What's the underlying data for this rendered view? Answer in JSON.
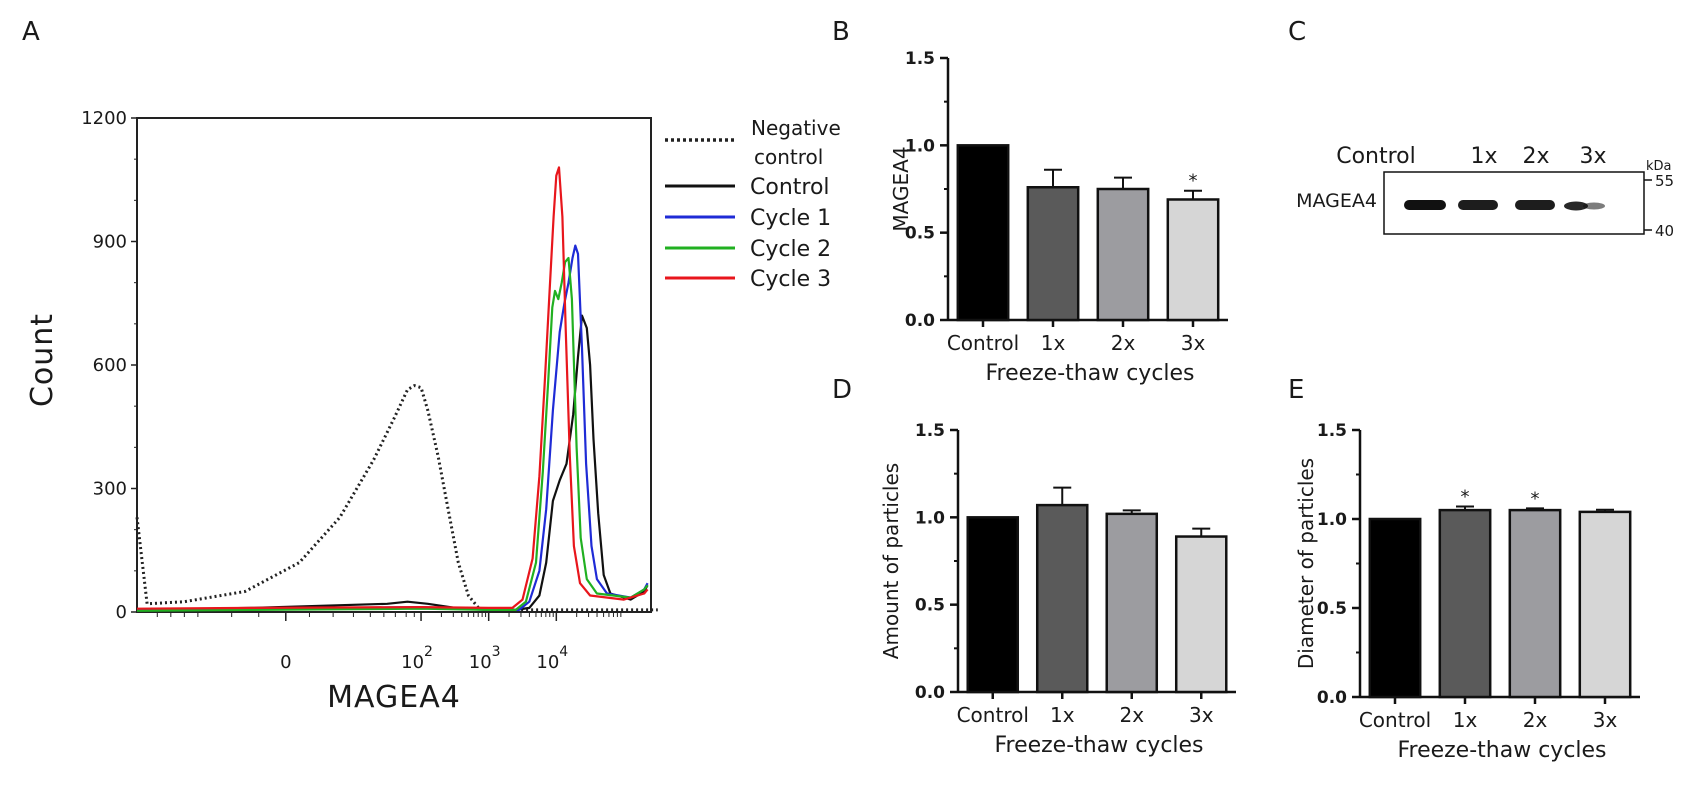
{
  "panel_letters": [
    "A",
    "B",
    "C",
    "D",
    "E"
  ],
  "colors": {
    "negative_control": "#222222",
    "control": "#111111",
    "cycle_1": "#1f2bd6",
    "cycle_2": "#21b021",
    "cycle_3": "#e8161c",
    "bar_control": "#000000",
    "bar_1x": "#5a5a5a",
    "bar_2x": "#9c9ca0",
    "bar_3x": "#d6d6d6"
  },
  "chart_data": [
    {
      "panel": "A",
      "type": "line",
      "xlabel": "MAGEA4",
      "ylabel": "Count",
      "x_scale": "log",
      "x_tick_labels": [
        {
          "base": "0",
          "exp": ""
        },
        {
          "base": "10",
          "exp": "2"
        },
        {
          "base": "10",
          "exp": "3"
        },
        {
          "base": "10",
          "exp": "4"
        }
      ],
      "y_ticks": [
        0,
        300,
        600,
        900,
        1200
      ],
      "ylim": [
        0,
        1200
      ],
      "legend": [
        "Negative control",
        "Control",
        "Cycle 1",
        "Cycle 2",
        "Cycle 3"
      ],
      "legend_lines": [
        [
          "Negative",
          "control"
        ],
        [
          "Control"
        ],
        [
          "Cycle 1"
        ],
        [
          "Cycle 2"
        ],
        [
          "Cycle 3"
        ]
      ],
      "series": [
        {
          "name": "Negative control",
          "style": "dotted",
          "color_key": "negative_control",
          "points": [
            [
              -2.2,
              230
            ],
            [
              -2.05,
              20
            ],
            [
              -1.5,
              25
            ],
            [
              -0.6,
              50
            ],
            [
              0.2,
              120
            ],
            [
              0.8,
              230
            ],
            [
              1.3,
              370
            ],
            [
              1.6,
              470
            ],
            [
              1.8,
              540
            ],
            [
              1.9,
              550
            ],
            [
              2.0,
              545
            ],
            [
              2.1,
              490
            ],
            [
              2.25,
              380
            ],
            [
              2.4,
              250
            ],
            [
              2.55,
              120
            ],
            [
              2.7,
              40
            ],
            [
              2.85,
              10
            ],
            [
              3.0,
              5
            ],
            [
              5.5,
              5
            ]
          ]
        },
        {
          "name": "Control",
          "style": "solid",
          "color_key": "control",
          "points": [
            [
              -2.2,
              5
            ],
            [
              -0.5,
              10
            ],
            [
              1.5,
              20
            ],
            [
              1.8,
              25
            ],
            [
              2.1,
              20
            ],
            [
              2.5,
              10
            ],
            [
              3.0,
              5
            ],
            [
              3.4,
              5
            ],
            [
              3.6,
              10
            ],
            [
              3.75,
              40
            ],
            [
              3.85,
              120
            ],
            [
              3.95,
              270
            ],
            [
              4.05,
              320
            ],
            [
              4.15,
              360
            ],
            [
              4.25,
              480
            ],
            [
              4.32,
              620
            ],
            [
              4.38,
              720
            ],
            [
              4.45,
              690
            ],
            [
              4.5,
              600
            ],
            [
              4.55,
              420
            ],
            [
              4.62,
              240
            ],
            [
              4.7,
              90
            ],
            [
              4.8,
              45
            ],
            [
              5.1,
              30
            ],
            [
              5.3,
              50
            ],
            [
              5.35,
              65
            ]
          ]
        },
        {
          "name": "Cycle 1",
          "style": "solid",
          "color_key": "cycle_1",
          "points": [
            [
              -2.2,
              5
            ],
            [
              -0.5,
              8
            ],
            [
              2.0,
              12
            ],
            [
              3.0,
              5
            ],
            [
              3.45,
              5
            ],
            [
              3.6,
              25
            ],
            [
              3.75,
              100
            ],
            [
              3.85,
              250
            ],
            [
              3.95,
              490
            ],
            [
              4.05,
              680
            ],
            [
              4.12,
              750
            ],
            [
              4.18,
              800
            ],
            [
              4.24,
              860
            ],
            [
              4.28,
              890
            ],
            [
              4.32,
              870
            ],
            [
              4.38,
              640
            ],
            [
              4.44,
              360
            ],
            [
              4.52,
              160
            ],
            [
              4.6,
              80
            ],
            [
              4.75,
              45
            ],
            [
              5.1,
              35
            ],
            [
              5.3,
              55
            ],
            [
              5.35,
              70
            ]
          ]
        },
        {
          "name": "Cycle 2",
          "style": "solid",
          "color_key": "cycle_2",
          "points": [
            [
              -2.2,
              3
            ],
            [
              -0.5,
              5
            ],
            [
              2.0,
              8
            ],
            [
              3.0,
              5
            ],
            [
              3.4,
              5
            ],
            [
              3.55,
              25
            ],
            [
              3.7,
              120
            ],
            [
              3.8,
              340
            ],
            [
              3.88,
              560
            ],
            [
              3.94,
              740
            ],
            [
              3.98,
              780
            ],
            [
              4.03,
              760
            ],
            [
              4.08,
              800
            ],
            [
              4.13,
              850
            ],
            [
              4.18,
              860
            ],
            [
              4.23,
              760
            ],
            [
              4.3,
              400
            ],
            [
              4.36,
              180
            ],
            [
              4.45,
              80
            ],
            [
              4.6,
              45
            ],
            [
              5.1,
              35
            ],
            [
              5.3,
              55
            ],
            [
              5.35,
              65
            ]
          ]
        },
        {
          "name": "Cycle 3",
          "style": "solid",
          "color_key": "cycle_3",
          "points": [
            [
              -2.2,
              8
            ],
            [
              -0.5,
              10
            ],
            [
              2.0,
              12
            ],
            [
              3.0,
              10
            ],
            [
              3.35,
              10
            ],
            [
              3.5,
              30
            ],
            [
              3.65,
              130
            ],
            [
              3.75,
              330
            ],
            [
              3.83,
              560
            ],
            [
              3.9,
              780
            ],
            [
              3.96,
              960
            ],
            [
              4.0,
              1060
            ],
            [
              4.04,
              1080
            ],
            [
              4.09,
              960
            ],
            [
              4.14,
              680
            ],
            [
              4.2,
              380
            ],
            [
              4.26,
              160
            ],
            [
              4.35,
              70
            ],
            [
              4.5,
              40
            ],
            [
              5.0,
              30
            ],
            [
              5.3,
              45
            ],
            [
              5.35,
              55
            ]
          ]
        }
      ]
    },
    {
      "panel": "B",
      "type": "bar",
      "categories": [
        "Control",
        "1x",
        "2x",
        "3x"
      ],
      "values": [
        1.0,
        0.76,
        0.75,
        0.69
      ],
      "errors": [
        0,
        0.1,
        0.065,
        0.05
      ],
      "significance": [
        "",
        "",
        "",
        "*"
      ],
      "ylabel": "MAGEA4",
      "xlabel": "Freeze-thaw cycles",
      "ylim": [
        0,
        1.5
      ],
      "y_tick_labels": [
        "0.0",
        "0.5",
        "1.0",
        "1.5"
      ]
    },
    {
      "panel": "C",
      "type": "western-blot",
      "lane_labels": [
        "Control",
        "1x",
        "2x",
        "3x"
      ],
      "row_label": "MAGEA4",
      "marker_unit": "kDa",
      "markers": [
        "55",
        "40"
      ]
    },
    {
      "panel": "D",
      "type": "bar",
      "categories": [
        "Control",
        "1x",
        "2x",
        "3x"
      ],
      "values": [
        1.0,
        1.07,
        1.02,
        0.89
      ],
      "errors": [
        0,
        0.1,
        0.02,
        0.045
      ],
      "significance": [
        "",
        "",
        "",
        ""
      ],
      "ylabel": "Amount of particles",
      "xlabel": "Freeze-thaw cycles",
      "ylim": [
        0,
        1.5
      ],
      "y_tick_labels": [
        "0.0",
        "0.5",
        "1.0",
        "1.5"
      ]
    },
    {
      "panel": "E",
      "type": "bar",
      "categories": [
        "Control",
        "1x",
        "2x",
        "3x"
      ],
      "values": [
        1.0,
        1.05,
        1.05,
        1.04
      ],
      "errors": [
        0,
        0.02,
        0.01,
        0.012
      ],
      "significance": [
        "",
        "*",
        "*",
        ""
      ],
      "ylabel": "Diameter of particles",
      "xlabel": "Freeze-thaw cycles",
      "ylim": [
        0,
        1.5
      ],
      "y_tick_labels": [
        "0.0",
        "0.5",
        "1.0",
        "1.5"
      ]
    }
  ]
}
